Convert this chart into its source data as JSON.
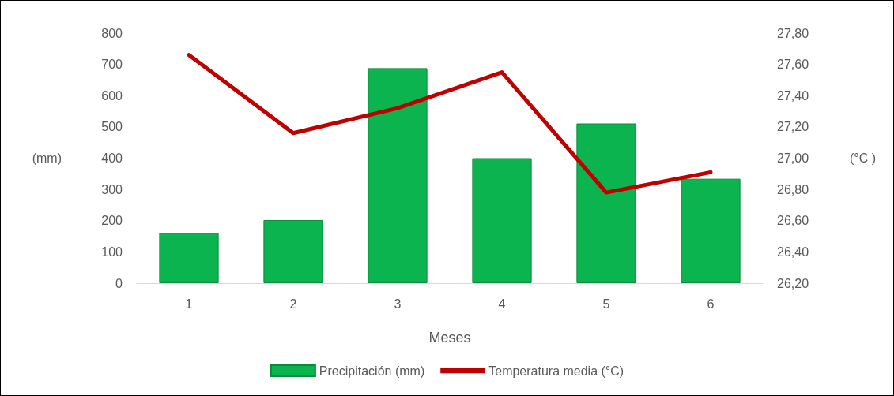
{
  "chart_data": {
    "type": "bar",
    "xlabel": "Meses",
    "ylabel": "(mm)",
    "y2label": "(°C )",
    "categories": [
      "1",
      "2",
      "3",
      "4",
      "5",
      "6"
    ],
    "series": [
      {
        "name": "Precipitación (mm)",
        "color": "#0cb450",
        "values": [
          161,
          202,
          688,
          400,
          511,
          334
        ]
      },
      {
        "name": "Temperatura media (°C)",
        "type": "line",
        "axis": "y2",
        "color": "#c00000",
        "values": [
          27.66,
          27.16,
          27.32,
          27.55,
          26.78,
          26.91
        ]
      }
    ],
    "ylim": [
      0,
      800
    ],
    "yticks": [
      0,
      100,
      200,
      300,
      400,
      500,
      600,
      700,
      800
    ],
    "y2lim": [
      26.2,
      27.8
    ],
    "y2ticks": [
      {
        "value": 26.2,
        "label": "26,20"
      },
      {
        "value": 26.4,
        "label": "26,40"
      },
      {
        "value": 26.6,
        "label": "26,60"
      },
      {
        "value": 26.8,
        "label": "26,80"
      },
      {
        "value": 27.0,
        "label": "27,00"
      },
      {
        "value": 27.2,
        "label": "27,20"
      },
      {
        "value": 27.4,
        "label": "27,40"
      },
      {
        "value": 27.6,
        "label": "27,60"
      },
      {
        "value": 27.8,
        "label": "27,80"
      }
    ],
    "grid": false,
    "legend": "bottom",
    "marker": "none",
    "line_style": "solid"
  }
}
